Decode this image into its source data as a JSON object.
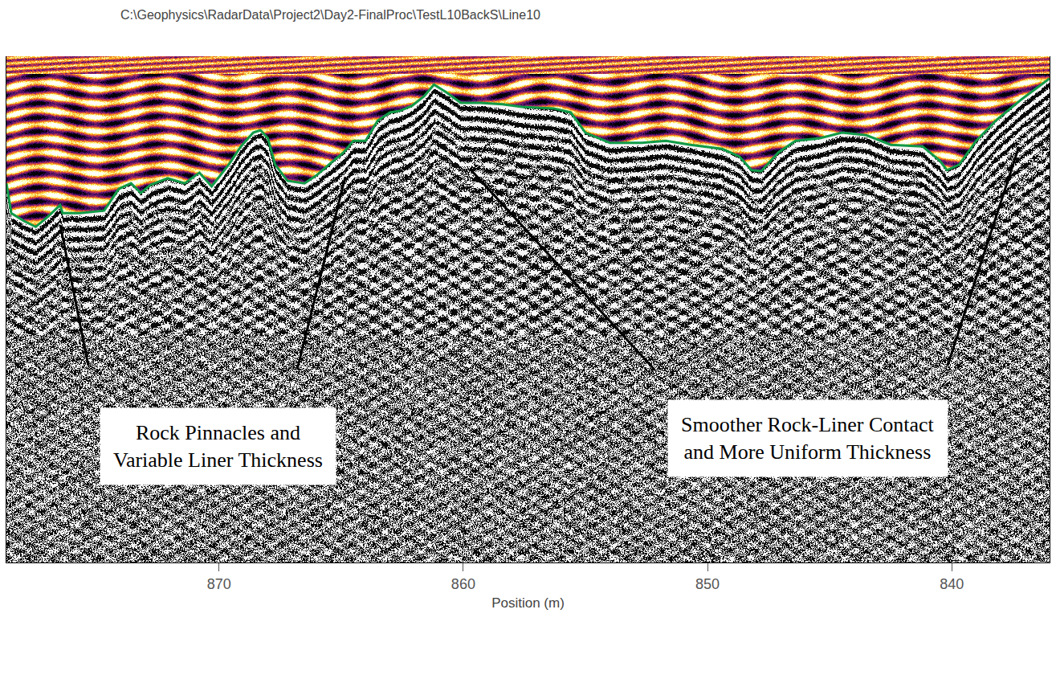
{
  "chart_data": {
    "type": "line",
    "title": "C:\\Geophysics\\RadarData\\Project2\\Day2-FinalProc\\TestL10BackS\\Line10",
    "x_label": "Position (m)",
    "x": [
      878.7,
      878.5,
      878.0,
      877.5,
      877.0,
      876.5,
      876.4,
      875.7,
      874.7,
      874.1,
      873.6,
      873.2,
      872.8,
      872.1,
      871.4,
      870.8,
      870.3,
      869.6,
      869.1,
      868.6,
      868.3,
      868.0,
      867.7,
      867.2,
      866.5,
      866.0,
      865.5,
      864.9,
      864.5,
      864.0,
      863.5,
      863.0,
      862.6,
      862.1,
      861.6,
      861.2,
      860.7,
      860.1,
      859.3,
      858.4,
      857.6,
      856.3,
      855.6,
      855.0,
      854.0,
      852.7,
      851.7,
      850.7,
      849.4,
      848.7,
      848.2,
      847.8,
      847.1,
      846.4,
      845.4,
      844.5,
      843.5,
      842.5,
      841.2,
      840.5,
      840.2,
      839.7,
      839.0,
      838.2,
      837.2,
      836.2,
      836.0
    ],
    "series": [
      {
        "color": "#109a48",
        "values": [
          25.1,
          31.0,
          32.5,
          33.7,
          31.7,
          29.4,
          31.0,
          31.0,
          30.5,
          26.2,
          25.1,
          27.0,
          25.4,
          24.1,
          25.1,
          23.0,
          25.7,
          21.4,
          17.8,
          15.1,
          14.6,
          16.2,
          21.4,
          24.6,
          25.1,
          23.5,
          21.4,
          19.0,
          16.7,
          16.7,
          12.7,
          11.1,
          10.8,
          9.8,
          7.9,
          5.6,
          7.1,
          9.2,
          9.2,
          9.5,
          10.0,
          10.3,
          11.1,
          15.1,
          17.1,
          17.1,
          16.7,
          17.5,
          18.3,
          19.8,
          22.5,
          22.7,
          19.0,
          16.7,
          16.2,
          15.1,
          15.6,
          17.5,
          17.8,
          20.6,
          22.5,
          21.4,
          16.7,
          12.7,
          8.7,
          5.2,
          4.4
        ]
      }
    ],
    "xlim": [
      878.7,
      836.0
    ],
    "xticks": [
      870,
      860,
      850,
      840
    ],
    "ylim": [
      100,
      0
    ],
    "tick_labels": "x",
    "annotations": [
      "Rock Pinnacles and\nVariable Liner Thickness",
      "Smoother Rock-Liner Contact\nand More Uniform Thickness"
    ]
  }
}
